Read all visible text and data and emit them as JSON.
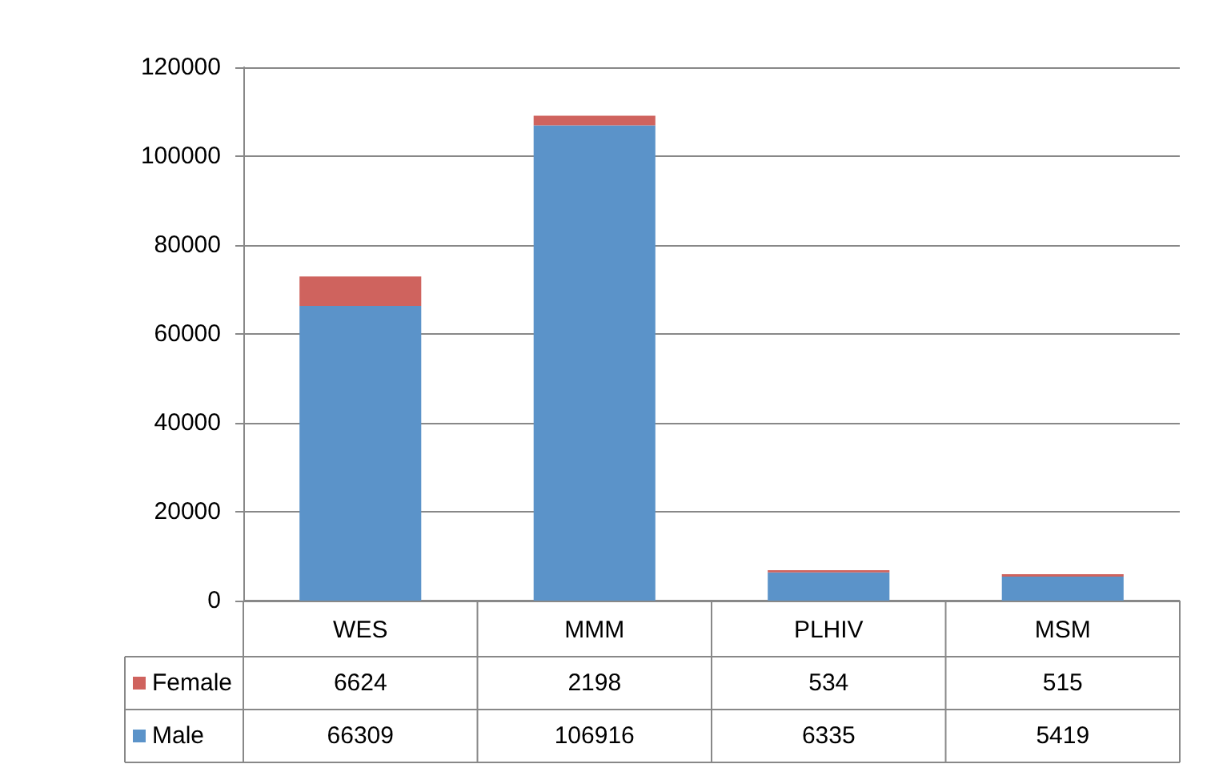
{
  "chart_data": {
    "type": "bar",
    "stacked": true,
    "categories": [
      "WES",
      "MMM",
      "PLHIV",
      "MSM"
    ],
    "series": [
      {
        "name": "Male",
        "color": "#5b93c9",
        "values": [
          66309,
          106916,
          6335,
          5419
        ]
      },
      {
        "name": "Female",
        "color": "#cf635e",
        "values": [
          6624,
          2198,
          534,
          515
        ]
      }
    ],
    "ylim": [
      0,
      120000
    ],
    "yticks": [
      0,
      20000,
      40000,
      60000,
      80000,
      100000,
      120000
    ],
    "grid": "y",
    "legend": "bottom",
    "data_labels": true
  }
}
